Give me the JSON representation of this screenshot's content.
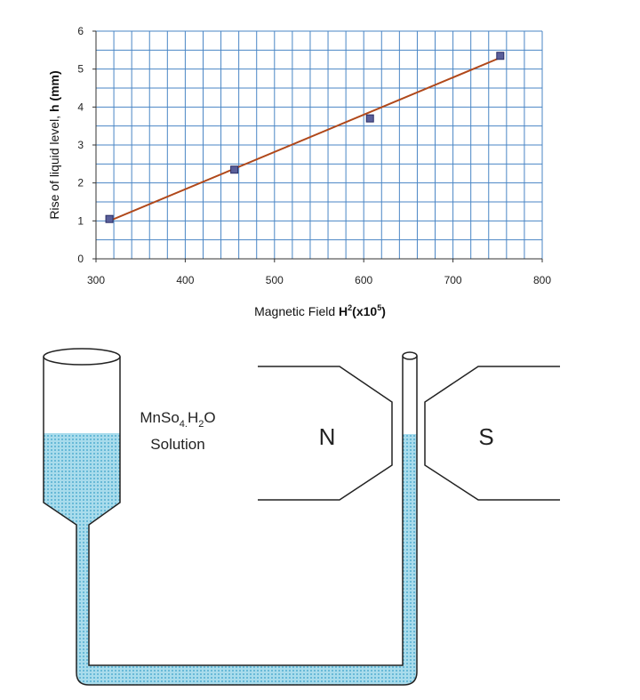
{
  "chart_data": {
    "type": "scatter",
    "xlabel": "Magnetic Field H²(x10⁵)",
    "xlabel_parts": {
      "prefix": "Magnetic Field ",
      "bold_main": "H",
      "sup1": "2",
      "bold_mid": "(x10",
      "sup2": "5",
      "bold_end": ")"
    },
    "ylabel": "Rise of liquid level, h (mm)",
    "ylabel_parts": {
      "prefix": "Rise of liquid level, ",
      "bold": "h (mm)"
    },
    "xlim": [
      300,
      800
    ],
    "ylim": [
      0,
      6
    ],
    "x_ticks": [
      "300",
      "400",
      "500",
      "600",
      "700",
      "800"
    ],
    "y_ticks": [
      "0",
      "1",
      "2",
      "3",
      "4",
      "5",
      "6"
    ],
    "grid": true,
    "x_minor_step": 20,
    "y_minor_step": 0.5,
    "series": [
      {
        "points": [
          {
            "x": 315,
            "y": 1.05
          },
          {
            "x": 455,
            "y": 2.35
          },
          {
            "x": 607,
            "y": 3.7
          },
          {
            "x": 753,
            "y": 5.35
          }
        ],
        "marker_color": "#5a5f9a",
        "marker_edge": "#2a2e66"
      }
    ],
    "trendline": {
      "x": [
        315,
        753
      ],
      "y": [
        1.0,
        5.3
      ],
      "color": "#b0481a"
    },
    "grid_color": "#4a86c5"
  },
  "diagram": {
    "solution_line1_parts": {
      "a": "MnSo",
      "sub1": "4",
      "dot": ".",
      "b": "H",
      "sub2": "2",
      "c": "O"
    },
    "solution_line2": "Solution",
    "pole_left": "N",
    "pole_right": "S",
    "liquid_color": "#a9dcec",
    "liquid_dot_color": "#3aa0c8"
  }
}
